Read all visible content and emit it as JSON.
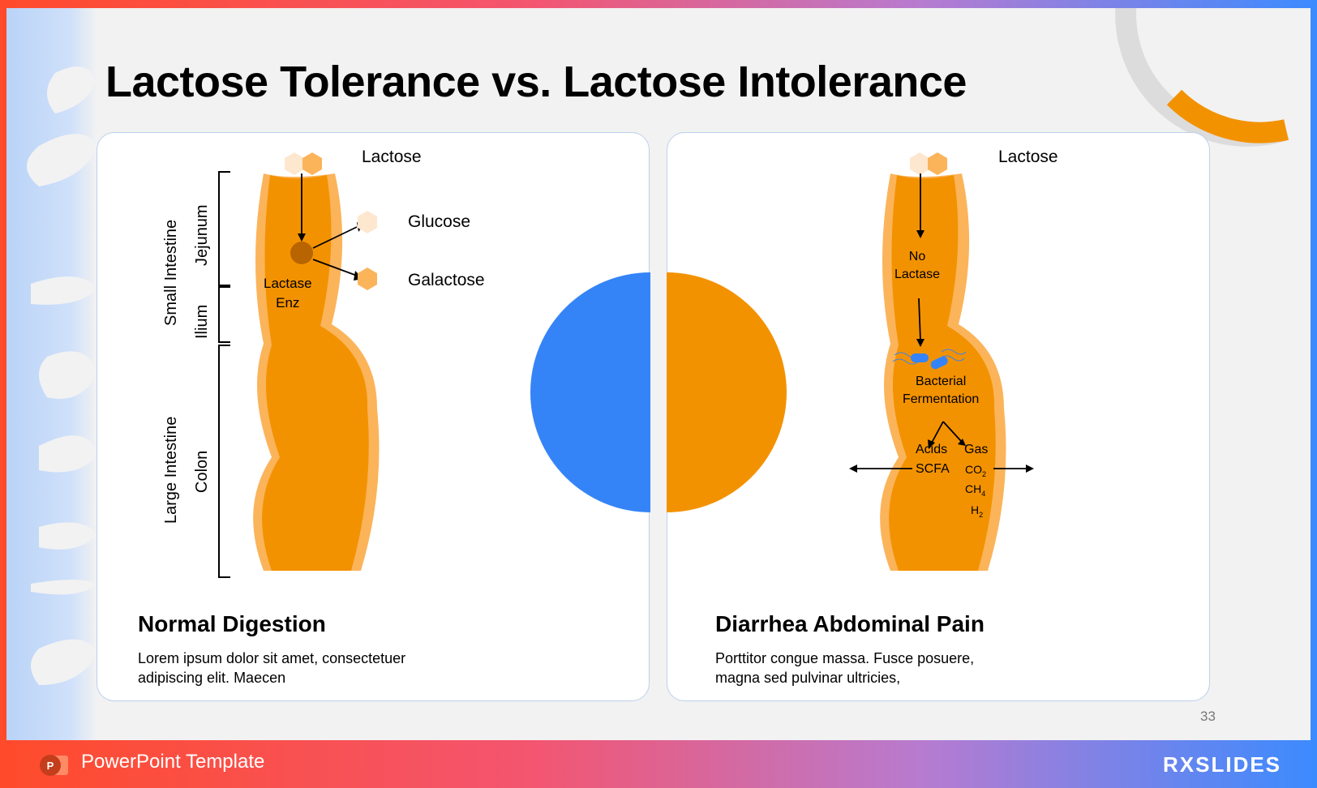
{
  "slide": {
    "title": "Lactose Tolerance vs. Lactose Intolerance",
    "page_number": "33"
  },
  "left_panel": {
    "lactose_label": "Lactose",
    "glucose_label": "Glucose",
    "galactose_label": "Galactose",
    "enzyme_label_line1": "Lactase",
    "enzyme_label_line2": "Enz",
    "small_intestine_label": "Small Intestine",
    "jejunum_label": "Jejunum",
    "ilium_label": "Ilium",
    "large_intestine_label": "Large Intestine",
    "colon_label": "Colon",
    "heading": "Normal Digestion",
    "body_line1": "Lorem ipsum dolor sit amet, consectetuer",
    "body_line2": "adipiscing elit. Maecen"
  },
  "right_panel": {
    "lactose_label": "Lactose",
    "no_lactase_line1": "No",
    "no_lactase_line2": "Lactase",
    "fermentation_line1": "Bacterial",
    "fermentation_line2": "Fermentation",
    "acids_label": "Acids",
    "scfa_label": "SCFA",
    "gas_label": "Gas",
    "co2_label": "CO",
    "co2_sub": "2",
    "ch4_label": "CH",
    "ch4_sub": "4",
    "h2_label": "H",
    "h2_sub": "2",
    "heading": "Diarrhea Abdominal Pain",
    "body_line1": "Porttitor congue massa. Fusce posuere,",
    "body_line2": "magna sed pulvinar ultricies,"
  },
  "footer": {
    "template_label": "PowerPoint Template",
    "brand": "RXSLIDES"
  },
  "colors": {
    "orange": "#f39200",
    "light_orange": "#fbb45a",
    "pale_hex": "#fde7cf",
    "blue": "#3584f7",
    "enzyme": "#b86400"
  }
}
